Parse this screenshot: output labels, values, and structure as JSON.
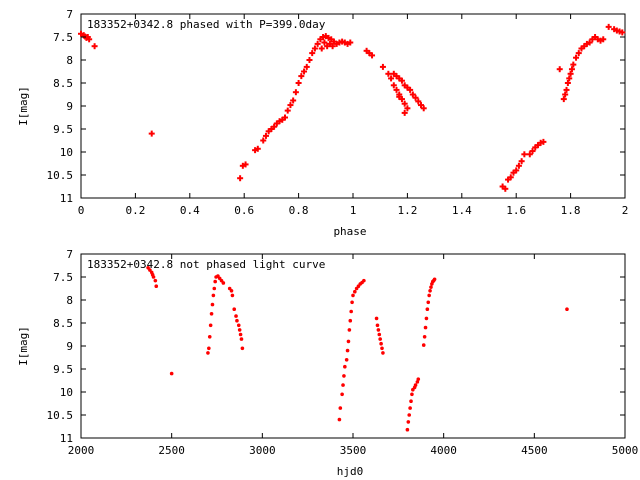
{
  "chart_data": [
    {
      "type": "scatter",
      "title": "183352+0342.8 phased with P=399.0day",
      "xlabel": "phase",
      "ylabel": "I[mag]",
      "xlim": [
        0,
        2
      ],
      "ylim": [
        11,
        7
      ],
      "y_inverted": true,
      "grid": false,
      "x_ticks": [
        0,
        0.2,
        0.4,
        0.6,
        0.8,
        1,
        1.2,
        1.4,
        1.6,
        1.8,
        2
      ],
      "x_tick_labels": [
        "0",
        "0.2",
        "0.4",
        "0.6",
        "0.8",
        "1",
        "1.2",
        "1.4",
        "1.6",
        "1.8",
        "2"
      ],
      "y_ticks": [
        7,
        7.5,
        8,
        8.5,
        9,
        9.5,
        10,
        10.5,
        11
      ],
      "y_tick_labels": [
        "7",
        "7.5",
        "8",
        "8.5",
        "9",
        "9.5",
        "10",
        "10.5",
        "11"
      ],
      "marker_color": "#ff0000",
      "marker": "plus",
      "points": [
        [
          0.0,
          7.43
        ],
        [
          0.01,
          7.46
        ],
        [
          0.015,
          7.49
        ],
        [
          0.02,
          7.52
        ],
        [
          0.025,
          7.5
        ],
        [
          0.03,
          7.55
        ],
        [
          0.05,
          7.7
        ],
        [
          0.26,
          9.6
        ],
        [
          0.585,
          10.57
        ],
        [
          0.595,
          10.3
        ],
        [
          0.605,
          10.27
        ],
        [
          0.64,
          9.96
        ],
        [
          0.65,
          9.93
        ],
        [
          0.67,
          9.75
        ],
        [
          0.68,
          9.65
        ],
        [
          0.69,
          9.55
        ],
        [
          0.7,
          9.5
        ],
        [
          0.71,
          9.45
        ],
        [
          0.72,
          9.38
        ],
        [
          0.73,
          9.33
        ],
        [
          0.74,
          9.3
        ],
        [
          0.75,
          9.25
        ],
        [
          0.76,
          9.1
        ],
        [
          0.77,
          8.98
        ],
        [
          0.78,
          8.88
        ],
        [
          0.79,
          8.7
        ],
        [
          0.8,
          8.5
        ],
        [
          0.81,
          8.35
        ],
        [
          0.82,
          8.25
        ],
        [
          0.83,
          8.15
        ],
        [
          0.84,
          8.0
        ],
        [
          0.85,
          7.85
        ],
        [
          0.86,
          7.75
        ],
        [
          0.87,
          7.65
        ],
        [
          0.88,
          7.55
        ],
        [
          0.89,
          7.5
        ],
        [
          0.9,
          7.48
        ],
        [
          0.91,
          7.52
        ],
        [
          0.92,
          7.55
        ],
        [
          0.93,
          7.6
        ],
        [
          0.94,
          7.65
        ],
        [
          0.95,
          7.62
        ],
        [
          0.96,
          7.6
        ],
        [
          0.97,
          7.62
        ],
        [
          0.98,
          7.65
        ],
        [
          0.99,
          7.62
        ],
        [
          0.885,
          7.75
        ],
        [
          0.895,
          7.62
        ],
        [
          0.905,
          7.7
        ],
        [
          0.915,
          7.65
        ],
        [
          0.925,
          7.7
        ],
        [
          1.05,
          7.8
        ],
        [
          1.06,
          7.85
        ],
        [
          1.07,
          7.9
        ],
        [
          1.11,
          8.15
        ],
        [
          1.13,
          8.3
        ],
        [
          1.14,
          8.4
        ],
        [
          1.15,
          8.55
        ],
        [
          1.16,
          8.65
        ],
        [
          1.17,
          8.75
        ],
        [
          1.18,
          8.85
        ],
        [
          1.19,
          8.95
        ],
        [
          1.2,
          9.05
        ],
        [
          1.16,
          8.35
        ],
        [
          1.17,
          8.4
        ],
        [
          1.18,
          8.45
        ],
        [
          1.19,
          8.55
        ],
        [
          1.2,
          8.6
        ],
        [
          1.21,
          8.65
        ],
        [
          1.22,
          8.75
        ],
        [
          1.23,
          8.82
        ],
        [
          1.24,
          8.9
        ],
        [
          1.25,
          8.98
        ],
        [
          1.26,
          9.05
        ],
        [
          1.15,
          8.3
        ],
        [
          1.17,
          8.8
        ],
        [
          1.19,
          9.15
        ],
        [
          1.55,
          10.75
        ],
        [
          1.56,
          10.8
        ],
        [
          1.57,
          10.6
        ],
        [
          1.58,
          10.55
        ],
        [
          1.59,
          10.45
        ],
        [
          1.6,
          10.4
        ],
        [
          1.61,
          10.3
        ],
        [
          1.62,
          10.2
        ],
        [
          1.63,
          10.05
        ],
        [
          1.65,
          10.05
        ],
        [
          1.66,
          9.98
        ],
        [
          1.67,
          9.9
        ],
        [
          1.68,
          9.85
        ],
        [
          1.69,
          9.8
        ],
        [
          1.7,
          9.78
        ],
        [
          1.76,
          8.2
        ],
        [
          1.775,
          8.85
        ],
        [
          1.78,
          8.75
        ],
        [
          1.785,
          8.65
        ],
        [
          1.79,
          8.5
        ],
        [
          1.795,
          8.4
        ],
        [
          1.8,
          8.3
        ],
        [
          1.805,
          8.2
        ],
        [
          1.81,
          8.1
        ],
        [
          1.82,
          7.95
        ],
        [
          1.83,
          7.85
        ],
        [
          1.84,
          7.75
        ],
        [
          1.85,
          7.7
        ],
        [
          1.86,
          7.65
        ],
        [
          1.87,
          7.62
        ],
        [
          1.88,
          7.55
        ],
        [
          1.89,
          7.5
        ],
        [
          1.9,
          7.55
        ],
        [
          1.91,
          7.58
        ],
        [
          1.92,
          7.55
        ],
        [
          1.94,
          7.28
        ],
        [
          1.96,
          7.33
        ],
        [
          1.97,
          7.36
        ],
        [
          1.98,
          7.38
        ],
        [
          1.99,
          7.4
        ]
      ]
    },
    {
      "type": "scatter",
      "title": "183352+0342.8 not phased light curve",
      "xlabel": "hjd0",
      "ylabel": "I[mag]",
      "xlim": [
        2000,
        5000
      ],
      "ylim": [
        11,
        7
      ],
      "y_inverted": true,
      "grid": false,
      "x_ticks": [
        2000,
        2500,
        3000,
        3500,
        4000,
        4500,
        5000
      ],
      "x_tick_labels": [
        "2000",
        "2500",
        "3000",
        "3500",
        "4000",
        "4500",
        "5000"
      ],
      "y_ticks": [
        7,
        7.5,
        8,
        8.5,
        9,
        9.5,
        10,
        10.5,
        11
      ],
      "y_tick_labels": [
        "7",
        "7.5",
        "8",
        "8.5",
        "9",
        "9.5",
        "10",
        "10.5",
        "11"
      ],
      "marker_color": "#ff0000",
      "marker": "dot",
      "points": [
        [
          2370,
          7.3
        ],
        [
          2380,
          7.35
        ],
        [
          2390,
          7.4
        ],
        [
          2395,
          7.45
        ],
        [
          2400,
          7.5
        ],
        [
          2410,
          7.58
        ],
        [
          2415,
          7.7
        ],
        [
          2500,
          9.6
        ],
        [
          2700,
          9.15
        ],
        [
          2705,
          9.05
        ],
        [
          2710,
          8.8
        ],
        [
          2715,
          8.55
        ],
        [
          2720,
          8.3
        ],
        [
          2725,
          8.1
        ],
        [
          2730,
          7.9
        ],
        [
          2735,
          7.75
        ],
        [
          2740,
          7.6
        ],
        [
          2745,
          7.5
        ],
        [
          2755,
          7.48
        ],
        [
          2765,
          7.53
        ],
        [
          2775,
          7.58
        ],
        [
          2785,
          7.63
        ],
        [
          2820,
          7.75
        ],
        [
          2830,
          7.8
        ],
        [
          2835,
          7.9
        ],
        [
          2845,
          8.2
        ],
        [
          2855,
          8.35
        ],
        [
          2860,
          8.45
        ],
        [
          2870,
          8.55
        ],
        [
          2875,
          8.65
        ],
        [
          2880,
          8.75
        ],
        [
          2885,
          8.85
        ],
        [
          2890,
          9.05
        ],
        [
          3425,
          10.6
        ],
        [
          3430,
          10.35
        ],
        [
          3440,
          10.05
        ],
        [
          3445,
          9.85
        ],
        [
          3450,
          9.65
        ],
        [
          3455,
          9.45
        ],
        [
          3465,
          9.3
        ],
        [
          3470,
          9.1
        ],
        [
          3475,
          8.9
        ],
        [
          3480,
          8.65
        ],
        [
          3485,
          8.45
        ],
        [
          3490,
          8.25
        ],
        [
          3495,
          8.05
        ],
        [
          3500,
          7.9
        ],
        [
          3510,
          7.82
        ],
        [
          3520,
          7.75
        ],
        [
          3530,
          7.7
        ],
        [
          3540,
          7.65
        ],
        [
          3550,
          7.62
        ],
        [
          3560,
          7.58
        ],
        [
          3630,
          8.4
        ],
        [
          3635,
          8.55
        ],
        [
          3640,
          8.65
        ],
        [
          3645,
          8.75
        ],
        [
          3650,
          8.85
        ],
        [
          3655,
          8.95
        ],
        [
          3660,
          9.05
        ],
        [
          3665,
          9.15
        ],
        [
          3800,
          10.82
        ],
        [
          3805,
          10.65
        ],
        [
          3810,
          10.5
        ],
        [
          3815,
          10.35
        ],
        [
          3820,
          10.2
        ],
        [
          3825,
          10.05
        ],
        [
          3830,
          9.95
        ],
        [
          3840,
          9.9
        ],
        [
          3845,
          9.85
        ],
        [
          3855,
          9.78
        ],
        [
          3860,
          9.72
        ],
        [
          3890,
          8.98
        ],
        [
          3895,
          8.8
        ],
        [
          3900,
          8.6
        ],
        [
          3905,
          8.4
        ],
        [
          3910,
          8.2
        ],
        [
          3915,
          8.05
        ],
        [
          3920,
          7.9
        ],
        [
          3925,
          7.8
        ],
        [
          3930,
          7.72
        ],
        [
          3935,
          7.65
        ],
        [
          3940,
          7.6
        ],
        [
          3945,
          7.58
        ],
        [
          3950,
          7.55
        ],
        [
          4680,
          8.2
        ]
      ]
    }
  ]
}
